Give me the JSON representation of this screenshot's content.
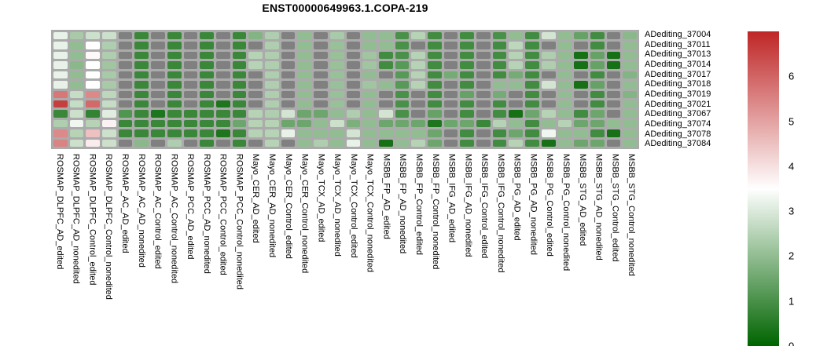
{
  "title": "ENST00000649963.1.COPA-219",
  "chart_data": {
    "type": "heatmap",
    "title": "ENST00000649963.1.COPA-219",
    "rows": [
      "ADediting_37004",
      "ADediting_37011",
      "ADediting_37013",
      "ADediting_37014",
      "ADediting_37017",
      "ADediting_37018",
      "ADediting_37019",
      "ADediting_37021",
      "ADediting_37067",
      "ADediting_37074",
      "ADediting_37078",
      "ADediting_37084"
    ],
    "columns": [
      "ROSMAP_DLPFC_AD_edited",
      "ROSMAP_DLPFC_AD_nonedited",
      "ROSMAP_DLPFC_Control_edited",
      "ROSMAP_DLPFC_Control_nonedited",
      "ROSMAP_AC_AD_edited",
      "ROSMAP_AC_AD_nonedited",
      "ROSMAP_AC_Control_edited",
      "ROSMAP_AC_Control_nonedited",
      "ROSMAP_PCC_AD_edited",
      "ROSMAP_PCC_AD_nonedited",
      "ROSMAP_PCC_Control_edited",
      "ROSMAP_PCC_Control_nonedited",
      "Mayo_CER_AD_edited",
      "Mayo_CER_AD_nonedited",
      "Mayo_CER_Control_edited",
      "Mayo_CER_Control_nonedited",
      "Mayo_TCX_AD_edited",
      "Mayo_TCX_AD_nonedited",
      "Mayo_TCX_Control_edited",
      "Mayo_TCX_Control_nonedited",
      "MSBB_FP_AD_edited",
      "MSBB_FP_AD_nonedited",
      "MSBB_FP_Control_edited",
      "MSBB_FP_Control_nonedited",
      "MSBB_IFG_AD_edited",
      "MSBB_IFG_AD_nonedited",
      "MSBB_IFG_Control_edited",
      "MSBB_IFG_Control_nonedited",
      "MSBB_PG_AD_edited",
      "MSBB_PG_AD_nonedited",
      "MSBB_PG_Control_edited",
      "MSBB_PG_Control_nonedited",
      "MSBB_STG_AD_edited",
      "MSBB_STG_AD_nonedited",
      "MSBB_STG_Control_edited",
      "MSBB_STG_Control_nonedited"
    ],
    "values": [
      [
        3.2,
        2.3,
        2.8,
        2.8,
        null,
        0.8,
        null,
        0.8,
        null,
        0.8,
        null,
        0.8,
        1.8,
        2.4,
        null,
        2.0,
        null,
        2.3,
        null,
        2.0,
        2.0,
        1.0,
        2.5,
        0.9,
        null,
        0.9,
        null,
        1.0,
        2.0,
        0.9,
        2.9,
        2.0,
        1.4,
        0.9,
        null,
        1.9
      ],
      [
        3.2,
        2.0,
        3.5,
        2.4,
        null,
        0.8,
        null,
        0.8,
        null,
        0.8,
        null,
        0.8,
        null,
        2.4,
        null,
        2.0,
        null,
        2.1,
        null,
        2.0,
        2.0,
        1.0,
        null,
        0.9,
        null,
        0.9,
        null,
        0.9,
        2.6,
        0.9,
        null,
        2.0,
        null,
        0.9,
        null,
        2.0
      ],
      [
        3.2,
        2.0,
        3.6,
        2.4,
        null,
        0.8,
        null,
        0.8,
        null,
        0.8,
        null,
        0.8,
        2.5,
        2.4,
        null,
        2.0,
        null,
        2.1,
        null,
        2.2,
        0.9,
        1.0,
        2.5,
        0.9,
        null,
        0.9,
        null,
        0.9,
        2.5,
        0.9,
        2.4,
        2.0,
        0.3,
        1.4,
        0.3,
        2.0
      ],
      [
        3.2,
        1.9,
        3.5,
        2.2,
        null,
        0.8,
        null,
        0.8,
        null,
        0.8,
        null,
        0.8,
        2.5,
        2.4,
        null,
        2.0,
        null,
        2.1,
        null,
        2.2,
        0.9,
        1.2,
        2.5,
        0.9,
        null,
        0.9,
        null,
        0.9,
        2.5,
        0.9,
        2.4,
        2.0,
        0.3,
        1.4,
        0.3,
        2.0
      ],
      [
        3.2,
        2.0,
        3.5,
        2.3,
        null,
        0.8,
        null,
        0.8,
        null,
        0.8,
        null,
        0.8,
        null,
        2.4,
        null,
        2.0,
        null,
        2.1,
        null,
        2.0,
        null,
        1.2,
        2.5,
        0.9,
        1.6,
        0.9,
        null,
        0.9,
        1.6,
        0.9,
        null,
        2.0,
        null,
        0.9,
        null,
        1.8
      ],
      [
        3.2,
        2.0,
        3.5,
        2.3,
        null,
        0.8,
        null,
        0.8,
        null,
        0.8,
        null,
        0.8,
        null,
        2.4,
        null,
        2.0,
        null,
        2.1,
        null,
        2.2,
        2.0,
        1.2,
        2.5,
        0.9,
        null,
        0.9,
        null,
        2.0,
        2.0,
        0.9,
        2.9,
        2.0,
        0.3,
        1.4,
        null,
        2.0
      ],
      [
        5.7,
        2.7,
        5.4,
        2.6,
        null,
        0.8,
        null,
        0.8,
        null,
        0.8,
        null,
        0.8,
        null,
        2.4,
        null,
        2.0,
        null,
        2.1,
        null,
        2.0,
        null,
        1.0,
        null,
        0.9,
        null,
        1.4,
        null,
        1.6,
        null,
        0.9,
        null,
        2.0,
        null,
        0.9,
        null,
        1.8
      ],
      [
        6.6,
        2.7,
        5.9,
        2.7,
        null,
        0.8,
        null,
        0.8,
        null,
        0.8,
        0.4,
        0.8,
        null,
        2.4,
        null,
        2.0,
        null,
        2.1,
        null,
        2.0,
        null,
        1.0,
        null,
        0.9,
        null,
        0.9,
        null,
        0.9,
        null,
        0.9,
        null,
        2.0,
        null,
        0.9,
        null,
        2.0
      ],
      [
        0.8,
        2.8,
        0.7,
        3.1,
        1.1,
        0.8,
        0.4,
        0.8,
        0.8,
        0.8,
        0.8,
        0.8,
        2.5,
        2.4,
        2.9,
        1.5,
        1.5,
        2.0,
        2.4,
        2.0,
        2.9,
        1.0,
        null,
        1.4,
        null,
        0.9,
        null,
        0.9,
        0.3,
        1.5,
        2.5,
        2.0,
        0.9,
        1.5,
        null,
        2.0
      ],
      [
        2.4,
        3.3,
        2.5,
        3.7,
        0.8,
        0.8,
        0.8,
        0.8,
        0.8,
        0.8,
        0.8,
        1.5,
        2.5,
        2.5,
        1.5,
        1.5,
        2.0,
        2.8,
        1.7,
        2.0,
        1.5,
        1.5,
        1.5,
        0.4,
        1.5,
        1.5,
        0.8,
        2.5,
        2.0,
        0.9,
        2.0,
        2.5,
        1.5,
        1.5,
        2.0,
        2.0
      ],
      [
        5.4,
        2.5,
        4.5,
        2.8,
        0.8,
        0.8,
        0.8,
        0.8,
        0.8,
        0.8,
        0.4,
        0.8,
        2.5,
        2.5,
        3.2,
        2.0,
        2.0,
        2.0,
        2.9,
        2.0,
        2.0,
        2.0,
        2.0,
        1.5,
        null,
        0.9,
        null,
        0.9,
        1.5,
        0.9,
        3.3,
        2.0,
        2.0,
        0.9,
        0.3,
        2.0
      ],
      [
        5.5,
        2.8,
        3.8,
        2.8,
        null,
        1.9,
        null,
        2.4,
        null,
        0.8,
        null,
        0.8,
        null,
        2.5,
        null,
        2.0,
        2.4,
        2.0,
        3.2,
        2.0,
        0.3,
        2.0,
        2.5,
        1.5,
        null,
        0.9,
        null,
        0.9,
        2.5,
        0.9,
        0.3,
        2.0,
        1.5,
        1.5,
        null,
        2.0
      ]
    ],
    "value_range": [
      0,
      7
    ],
    "white_midpoint": 3.5,
    "colors": {
      "low": "#006400",
      "mid": "#ffffff",
      "high": "#bf2626",
      "na": "#808080",
      "background": "#ababab"
    },
    "colorbar": {
      "ticks": [
        6,
        5,
        4,
        3,
        2,
        1,
        0
      ],
      "top_value": 7,
      "bottom_value": 0,
      "position": "right"
    }
  }
}
